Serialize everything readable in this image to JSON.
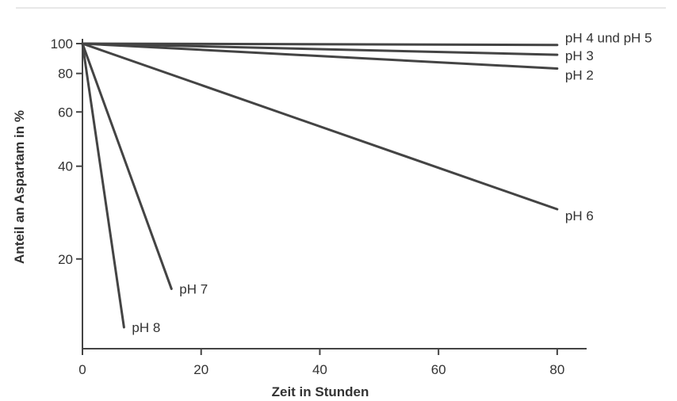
{
  "chart_data": {
    "type": "line",
    "title": "",
    "xlabel": "Zeit in Stunden",
    "ylabel": "Anteil an Aspartam in %",
    "x_ticks": [
      0,
      20,
      40,
      60,
      80
    ],
    "y_ticks": [
      100,
      80,
      60,
      40,
      20
    ],
    "xlim": [
      0,
      85
    ],
    "ylim": [
      10,
      100
    ],
    "y_scale": "log",
    "grid": false,
    "legend": "none",
    "line_color": "#444444",
    "series": [
      {
        "name": "pH 4 und pH 5",
        "points": [
          [
            0,
            100
          ],
          [
            80,
            99
          ]
        ]
      },
      {
        "name": "pH 3",
        "points": [
          [
            0,
            100
          ],
          [
            80,
            92
          ]
        ]
      },
      {
        "name": "pH 2",
        "points": [
          [
            0,
            100
          ],
          [
            80,
            83
          ]
        ]
      },
      {
        "name": "pH 6",
        "points": [
          [
            0,
            100
          ],
          [
            80,
            29
          ]
        ]
      },
      {
        "name": "pH 7",
        "points": [
          [
            0,
            100
          ],
          [
            15,
            16
          ]
        ]
      },
      {
        "name": "pH 8",
        "points": [
          [
            0,
            100
          ],
          [
            7,
            12
          ]
        ]
      }
    ]
  }
}
